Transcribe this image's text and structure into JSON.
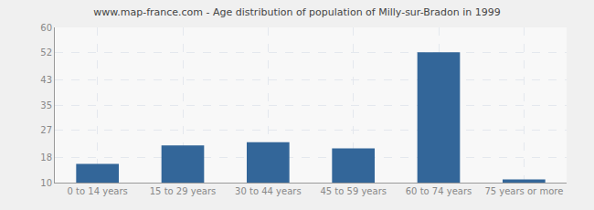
{
  "chart_data": {
    "type": "bar",
    "title": "www.map-france.com - Age distribution of population of Milly-sur-Bradon in 1999",
    "categories": [
      "0 to 14 years",
      "15 to 29 years",
      "30 to 44 years",
      "45 to 59 years",
      "60 to 74 years",
      "75 years or more"
    ],
    "values": [
      16,
      22,
      23,
      21,
      52,
      11
    ],
    "color": "#336699",
    "ylim": [
      10,
      60
    ],
    "yticks": [
      10,
      18,
      27,
      35,
      43,
      52,
      60
    ],
    "grid": true
  }
}
